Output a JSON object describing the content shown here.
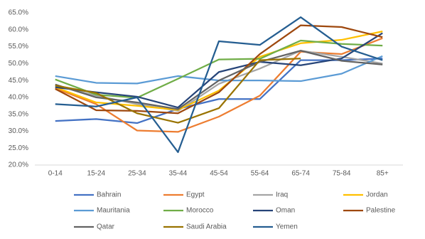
{
  "chart_data": {
    "type": "line",
    "categories": [
      "0-14",
      "15-24",
      "25-34",
      "35-44",
      "45-54",
      "55-64",
      "65-74",
      "75-84",
      "85+"
    ],
    "series": [
      {
        "name": "Bahrain",
        "color": "#4472c4",
        "values": [
          33.0,
          33.6,
          32.4,
          36.6,
          39.5,
          39.5,
          51.0,
          51.0,
          51.5
        ]
      },
      {
        "name": "Egypt",
        "color": "#ed7d31",
        "values": [
          42.7,
          38.0,
          30.2,
          29.8,
          34.3,
          40.5,
          53.5,
          52.8,
          57.5
        ]
      },
      {
        "name": "Iraq",
        "color": "#a5a5a5",
        "values": [
          43.5,
          40.5,
          38.0,
          36.0,
          44.0,
          48.5,
          53.8,
          52.0,
          50.0
        ]
      },
      {
        "name": "Jordan",
        "color": "#ffc000",
        "values": [
          43.0,
          38.5,
          37.5,
          36.3,
          42.0,
          52.0,
          56.0,
          57.0,
          59.5
        ]
      },
      {
        "name": "Mauritania",
        "color": "#5b9bd5",
        "values": [
          46.3,
          44.3,
          44.1,
          46.3,
          45.0,
          45.0,
          44.8,
          47.0,
          52.2
        ]
      },
      {
        "name": "Morocco",
        "color": "#70ad47",
        "values": [
          45.3,
          40.8,
          39.9,
          45.5,
          51.2,
          51.4,
          56.8,
          55.8,
          55.3
        ]
      },
      {
        "name": "Oman",
        "color": "#264478",
        "values": [
          43.0,
          41.5,
          40.2,
          37.0,
          47.5,
          50.5,
          49.5,
          51.5,
          59.0
        ]
      },
      {
        "name": "Palestine",
        "color": "#9e480e",
        "values": [
          42.5,
          36.2,
          36.0,
          35.3,
          41.5,
          52.8,
          61.3,
          60.8,
          57.8
        ]
      },
      {
        "name": "Qatar",
        "color": "#636363",
        "values": [
          43.8,
          40.0,
          38.5,
          36.5,
          45.0,
          50.5,
          53.8,
          50.8,
          49.7
        ]
      },
      {
        "name": "Saudi Arabia",
        "color": "#997300",
        "values": [
          43.5,
          41.3,
          35.3,
          32.5,
          36.8,
          51.0,
          51.5,
          null,
          null
        ]
      },
      {
        "name": "Yemen",
        "color": "#255e91",
        "values": [
          38.0,
          37.3,
          40.0,
          23.8,
          56.6,
          55.5,
          63.7,
          55.0,
          51.0
        ]
      }
    ],
    "ylim": [
      20,
      65
    ],
    "yticks": [
      {
        "value": 20,
        "label": "20.0%"
      },
      {
        "value": 25,
        "label": "25.0%"
      },
      {
        "value": 30,
        "label": "30.0%"
      },
      {
        "value": 35,
        "label": "35.0%"
      },
      {
        "value": 40,
        "label": "40.0%"
      },
      {
        "value": 45,
        "label": "45.0%"
      },
      {
        "value": 50,
        "label": "50.0%"
      },
      {
        "value": 55,
        "label": "55.0%"
      },
      {
        "value": 60,
        "label": "60.0%"
      },
      {
        "value": 65,
        "label": "65.0%"
      }
    ],
    "grid": false,
    "legend": "bottom"
  }
}
